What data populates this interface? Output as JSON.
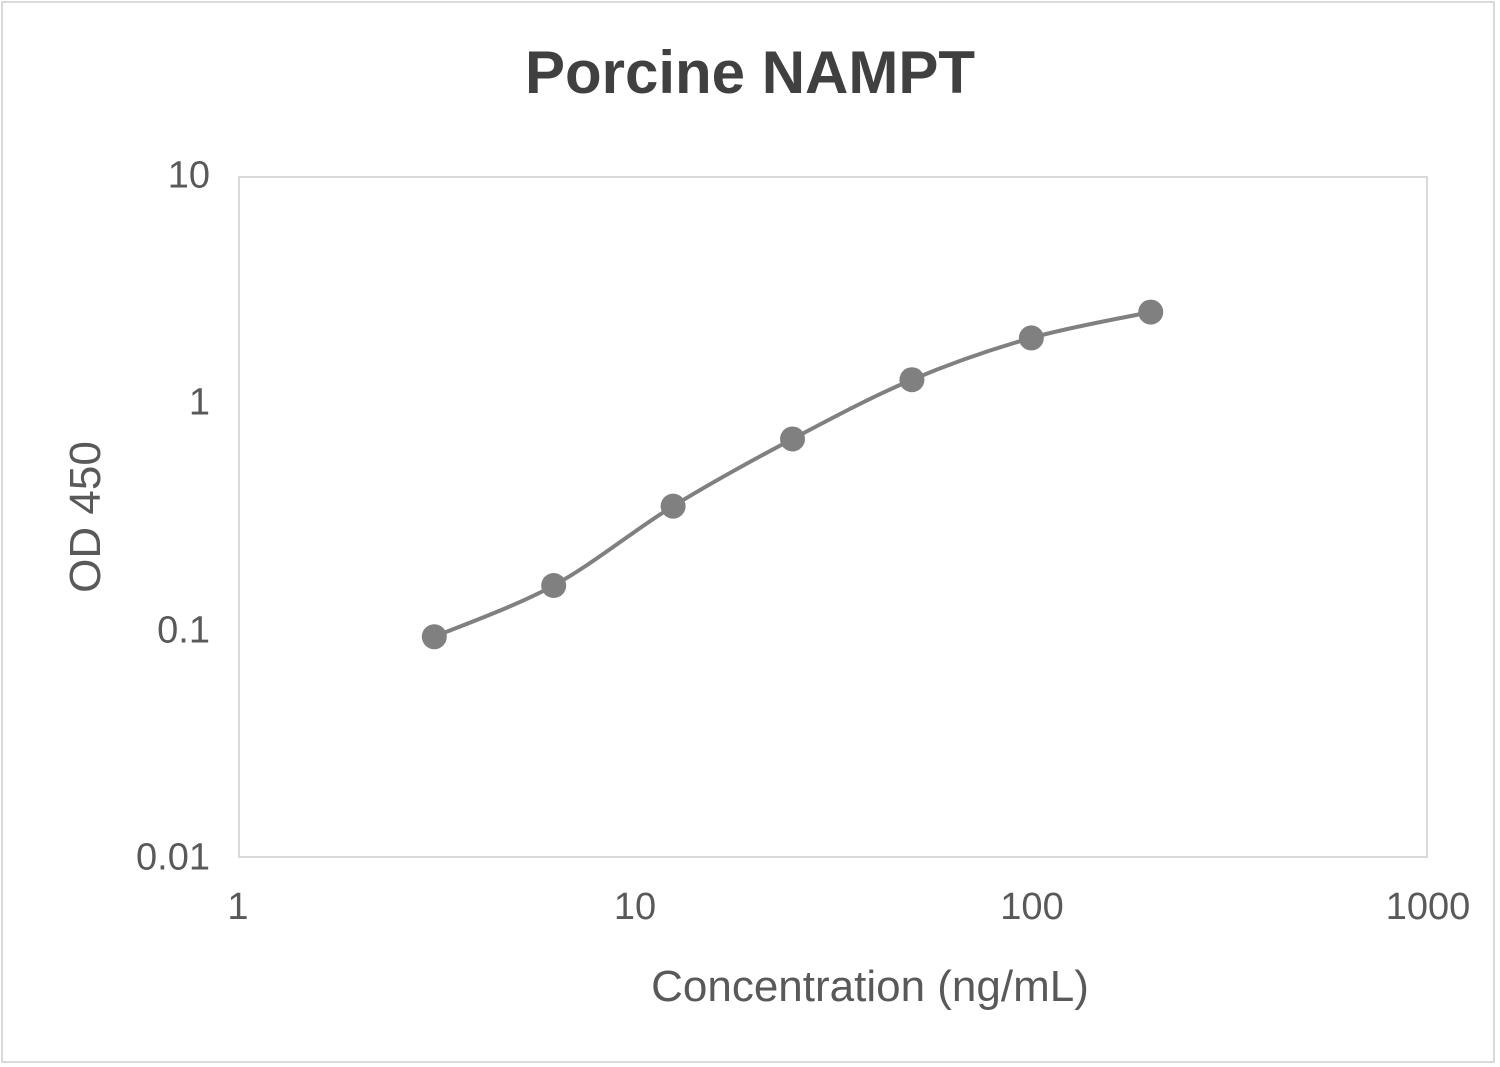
{
  "chart_data": {
    "type": "scatter",
    "title": "Porcine NAMPT",
    "xlabel": "Concentration (ng/mL)",
    "ylabel": "OD 450",
    "xscale": "log",
    "yscale": "log",
    "xlim": [
      1,
      1000
    ],
    "ylim": [
      0.01,
      10
    ],
    "x_ticks": [
      "1",
      "10",
      "100",
      "1000"
    ],
    "y_ticks": [
      "10",
      "1",
      "0.1",
      "0.01"
    ],
    "grid": false,
    "legend": null,
    "line": "smoothed",
    "series": [
      {
        "name": "Porcine NAMPT",
        "color": "#808080",
        "x": [
          3.125,
          6.25,
          12.5,
          25,
          50,
          100,
          200
        ],
        "y": [
          0.094,
          0.158,
          0.353,
          0.697,
          1.27,
          1.94,
          2.52
        ]
      }
    ]
  },
  "colors": {
    "series": "#808080",
    "axis_border": "#d9d9d9",
    "title": "#404040",
    "label": "#595959"
  }
}
